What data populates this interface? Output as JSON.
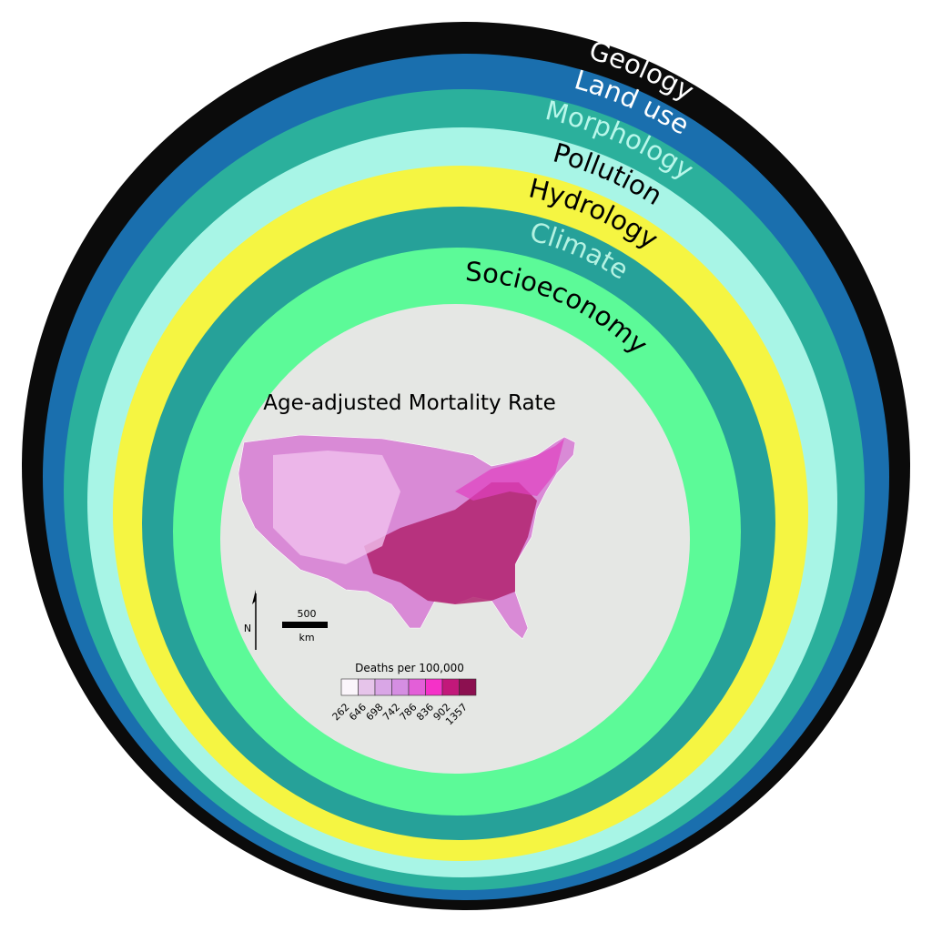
{
  "rings": [
    {
      "label": "Geology"
    },
    {
      "label": "Land use"
    },
    {
      "label": "Morphology"
    },
    {
      "label": "Pollution"
    },
    {
      "label": "Hydrology"
    },
    {
      "label": "Climate"
    },
    {
      "label": "Socioeconomy"
    }
  ],
  "map": {
    "title": "Age-adjusted Mortality Rate",
    "north": "N",
    "scale_value": "500",
    "scale_unit": "km"
  },
  "legend": {
    "title": "Deaths per 100,000",
    "labels": [
      262,
      646,
      698,
      742,
      786,
      836,
      902,
      1357
    ]
  }
}
